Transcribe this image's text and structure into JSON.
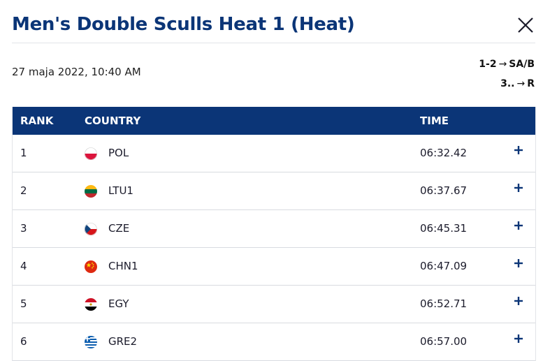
{
  "header": {
    "title": "Men's Double Sculls Heat 1 (Heat)",
    "date": "27 maja 2022, 10:40 AM",
    "progression": [
      {
        "places": "1-2",
        "arrow": "→",
        "target": "SA/B"
      },
      {
        "places": "3..",
        "arrow": "→",
        "target": "R"
      }
    ]
  },
  "table": {
    "columns": {
      "rank": "RANK",
      "country": "COUNTRY",
      "time": "TIME"
    },
    "rows": [
      {
        "rank": "1",
        "country": "POL",
        "time": "06:32.42",
        "flag": "pol"
      },
      {
        "rank": "2",
        "country": "LTU1",
        "time": "06:37.67",
        "flag": "ltu"
      },
      {
        "rank": "3",
        "country": "CZE",
        "time": "06:45.31",
        "flag": "cze"
      },
      {
        "rank": "4",
        "country": "CHN1",
        "time": "06:47.09",
        "flag": "chn"
      },
      {
        "rank": "5",
        "country": "EGY",
        "time": "06:52.71",
        "flag": "egy"
      },
      {
        "rank": "6",
        "country": "GRE2",
        "time": "06:57.00",
        "flag": "gre"
      }
    ]
  },
  "icons": {
    "close": "close-icon",
    "expand": "plus-icon"
  },
  "colors": {
    "header_bg": "#0b3577",
    "title": "#0b3577"
  }
}
